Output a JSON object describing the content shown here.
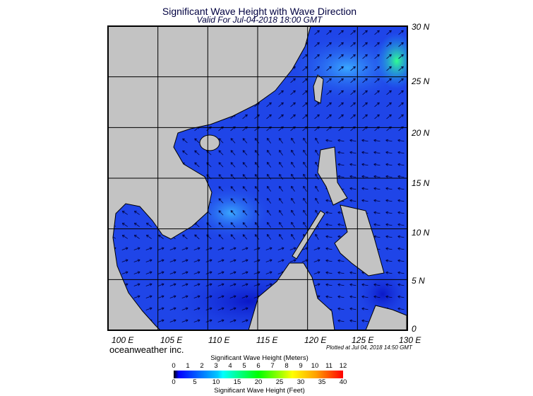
{
  "title": "Significant Wave Height with Wave Direction",
  "subtitle": "Valid For Jul-04-2018 18:00 GMT",
  "lat_labels": [
    "30 N",
    "25 N",
    "20 N",
    "15 N",
    "10 N",
    "5 N",
    "0"
  ],
  "lon_labels": [
    "100 E",
    "105 E",
    "110 E",
    "115 E",
    "120 E",
    "125 E",
    "130 E"
  ],
  "brand": "oceanweather inc.",
  "plotted": "Plotted at Jul 04, 2018 14:50 GMT",
  "colorbar": {
    "title_meters": "Significant Wave Height (Meters)",
    "title_feet": "Significant Wave Height (Feet)",
    "meters_ticks": [
      "0",
      "1",
      "2",
      "3",
      "4",
      "5",
      "6",
      "7",
      "8",
      "9",
      "10",
      "11",
      "12"
    ],
    "feet_ticks": [
      "0",
      "5",
      "10",
      "15",
      "20",
      "25",
      "30",
      "35",
      "40"
    ]
  },
  "colors": {
    "land": "#c3c3c3",
    "ocean": "#1f45e8",
    "ocean_light": "#2f8cf5",
    "grid": "#000000"
  },
  "map_extent": {
    "lon": [
      100,
      130
    ],
    "lat": [
      0,
      30
    ]
  }
}
